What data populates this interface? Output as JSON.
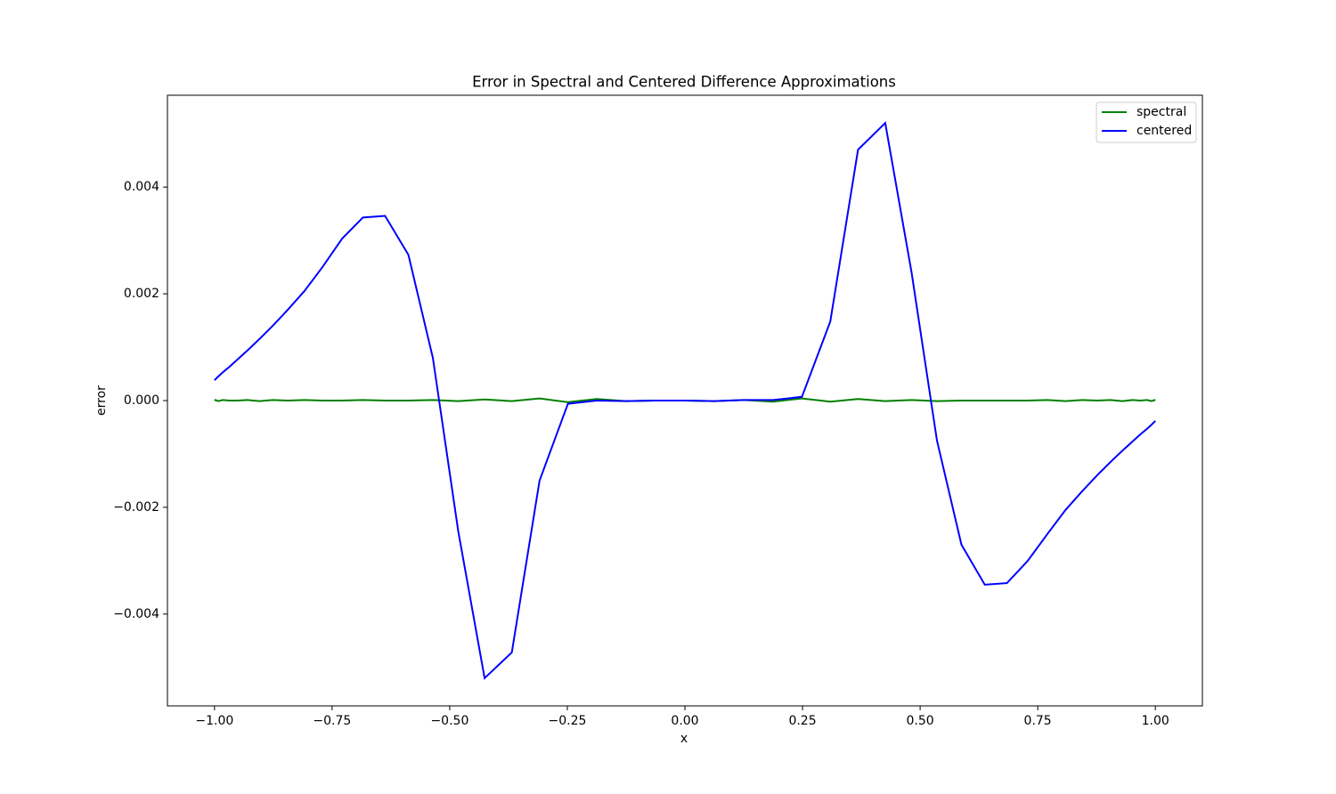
{
  "chart_data": {
    "type": "line",
    "title": "Error in Spectral and Centered Difference Approximations",
    "x_label": "x",
    "y_label": "error",
    "x": [
      -1,
      -0.998,
      -0.9921,
      -0.9823,
      -0.9686,
      -0.9511,
      -0.9298,
      -0.9048,
      -0.8763,
      -0.8443,
      -0.809,
      -0.7705,
      -0.729,
      -0.6845,
      -0.6374,
      -0.5878,
      -0.5358,
      -0.4818,
      -0.4258,
      -0.368,
      -0.309,
      -0.2487,
      -0.1874,
      -0.1253,
      -0.0628,
      0,
      0.0628,
      0.1253,
      0.1874,
      0.2487,
      0.309,
      0.368,
      0.4258,
      0.4818,
      0.5358,
      0.5878,
      0.6374,
      0.6845,
      0.729,
      0.7705,
      0.809,
      0.8443,
      0.8763,
      0.9048,
      0.9298,
      0.9511,
      0.9686,
      0.9823,
      0.9921,
      0.998,
      1
    ],
    "series": [
      {
        "name": "spectral",
        "color": "#008000",
        "values": [
          0,
          1e-05,
          -1e-05,
          1e-05,
          0,
          0,
          1e-05,
          -1e-05,
          1e-05,
          0,
          1e-05,
          0,
          0,
          1e-05,
          0,
          0,
          1e-05,
          -1e-05,
          2e-05,
          -1e-05,
          4e-05,
          -3e-05,
          3e-05,
          -1e-05,
          0,
          0,
          -1e-05,
          1e-05,
          -2e-05,
          4e-05,
          -2e-05,
          3e-05,
          -1e-05,
          1e-05,
          -1e-05,
          0,
          0,
          0,
          0,
          1e-05,
          -1e-05,
          1e-05,
          0,
          1e-05,
          -1e-05,
          1e-05,
          0,
          1e-05,
          -1e-05,
          1e-05,
          0
        ]
      },
      {
        "name": "centered",
        "color": "#0000ff",
        "values": [
          0.00038,
          0.0004,
          0.00045,
          0.00053,
          0.00063,
          0.00077,
          0.00094,
          0.00115,
          0.0014,
          0.0017,
          0.00205,
          0.0025,
          0.00303,
          0.00343,
          0.00346,
          0.00273,
          0.0008,
          -0.00245,
          -0.0052,
          -0.00472,
          -0.0015,
          -6e-05,
          0,
          -1e-05,
          0,
          0,
          -1e-05,
          1e-05,
          1e-05,
          7e-05,
          0.00148,
          0.0047,
          0.0052,
          0.0024,
          -0.00075,
          -0.0027,
          -0.00345,
          -0.00342,
          -0.003,
          -0.0025,
          -0.00205,
          -0.0017,
          -0.0014,
          -0.00115,
          -0.00094,
          -0.00077,
          -0.00063,
          -0.00053,
          -0.00045,
          -0.0004,
          -0.00038
        ]
      }
    ],
    "xlim": [
      -1.1,
      1.1
    ],
    "ylim": [
      -0.00572,
      0.00572
    ],
    "xticks": [
      {
        "value": -1,
        "label": "−1.00"
      },
      {
        "value": -0.75,
        "label": "−0.75"
      },
      {
        "value": -0.5,
        "label": "−0.50"
      },
      {
        "value": -0.25,
        "label": "−0.25"
      },
      {
        "value": 0,
        "label": "0.00"
      },
      {
        "value": 0.25,
        "label": "0.25"
      },
      {
        "value": 0.5,
        "label": "0.50"
      },
      {
        "value": 0.75,
        "label": "0.75"
      },
      {
        "value": 1,
        "label": "1.00"
      }
    ],
    "yticks": [
      {
        "value": -0.004,
        "label": "−0.004"
      },
      {
        "value": -0.002,
        "label": "−0.002"
      },
      {
        "value": 0,
        "label": "0.000"
      },
      {
        "value": 0.002,
        "label": "0.002"
      },
      {
        "value": 0.004,
        "label": "0.004"
      }
    ],
    "legend": "upper right",
    "grid": false
  }
}
